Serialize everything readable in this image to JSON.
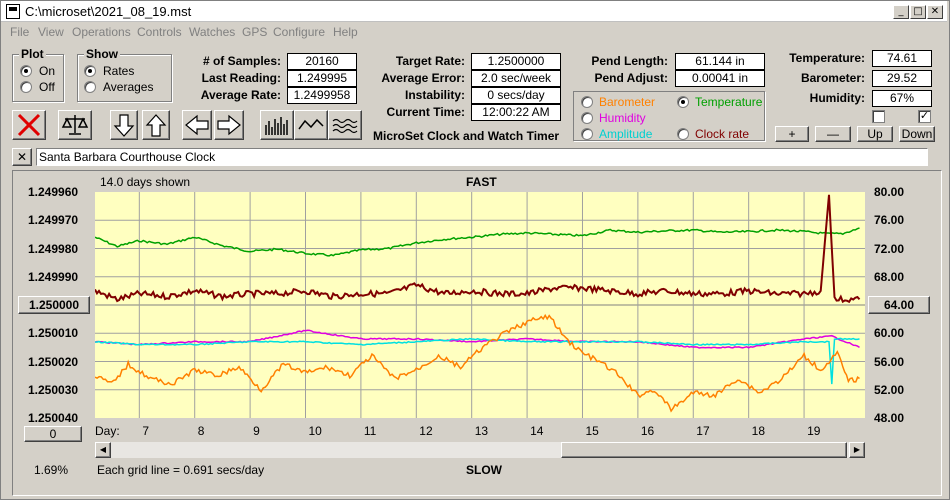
{
  "window": {
    "title": "C:\\microset\\2021_08_19.mst"
  },
  "menu": [
    "File",
    "View",
    "Operations",
    "Controls",
    "Watches",
    "GPS",
    "Configure",
    "Help"
  ],
  "plot_group": {
    "title": "Plot",
    "on": "On",
    "off": "Off",
    "selected": "On"
  },
  "show_group": {
    "title": "Show",
    "rates": "Rates",
    "averages": "Averages",
    "selected": "Rates"
  },
  "stats": {
    "samples_label": "# of Samples:",
    "samples": "20160",
    "last_label": "Last Reading:",
    "last": "1.249995",
    "avg_label": "Average Rate:",
    "avg": "1.2499958"
  },
  "rate": {
    "target_label": "Target Rate:",
    "target": "1.2500000",
    "error_label": "Average Error:",
    "error": "2.0 sec/week",
    "instab_label": "Instability:",
    "instab": "0 secs/day",
    "time_label": "Current Time:",
    "time": "12:00:22 AM",
    "app_name": "MicroSet Clock and Watch Timer"
  },
  "pend": {
    "length_label": "Pend Length:",
    "length": "61.144 in",
    "adjust_label": "Pend Adjust:",
    "adjust": "0.00041 in"
  },
  "sensor_options": {
    "barometer": "Barometer",
    "temperature": "Temperature",
    "humidity": "Humidity",
    "amplitude": "Amplitude",
    "clock_rate": "Clock rate",
    "selected": "Temperature"
  },
  "env": {
    "temp_label": "Temperature:",
    "temp": "74.61",
    "baro_label": "Barometer:",
    "baro": "29.52",
    "hum_label": "Humidity:",
    "hum": "67%"
  },
  "adjust_buttons": {
    "plus": "+",
    "minus": "—",
    "up": "Up",
    "down": "Down"
  },
  "watch_name": "Santa Barbara Courthouse Clock",
  "close_x": "✕",
  "colors": {
    "barometer": "#ff8000",
    "temperature": "#00a000",
    "humidity": "#e000e0",
    "amplitude": "#00e0e0",
    "clock_rate": "#800000",
    "plot_bg": "#ffffc0"
  },
  "chart_data": {
    "type": "line",
    "title": "FAST",
    "bottom_label": "SLOW",
    "days_shown": "14.0 days shown",
    "grid_note": "Each grid line = 0.691 secs/day",
    "xlabel": "Day:",
    "x_ticks": [
      "7",
      "8",
      "9",
      "10",
      "11",
      "12",
      "13",
      "14",
      "15",
      "16",
      "17",
      "18",
      "19"
    ],
    "xlim": [
      6.2,
      20.1
    ],
    "y_left_ticks": [
      "1.249960",
      "1.249970",
      "1.249980",
      "1.249990",
      "1.250000",
      "1.250010",
      "1.250020",
      "1.250030",
      "1.250040"
    ],
    "y_left_range": [
      1.24996,
      1.25004
    ],
    "y_left_reference": "1.250000",
    "y_right_ticks": [
      "80.00",
      "76.00",
      "72.00",
      "68.00",
      "64.00",
      "60.00",
      "56.00",
      "52.00",
      "48.00"
    ],
    "y_right_range": [
      80,
      48
    ],
    "y_right_reference": "64.00",
    "x_reference": "0",
    "percent": "1.69%",
    "series": [
      {
        "name": "Temperature",
        "axis": "right",
        "color": "#00a000",
        "x": [
          6.2,
          6.6,
          7.0,
          7.5,
          8.0,
          8.5,
          9.0,
          9.5,
          10.0,
          10.5,
          11.0,
          11.5,
          12.0,
          12.5,
          13.0,
          13.5,
          14.0,
          14.5,
          15.0,
          15.5,
          16.0,
          16.5,
          17.0,
          17.5,
          18.0,
          18.5,
          19.0,
          19.4,
          19.7,
          20.0
        ],
        "y": [
          73.6,
          72.3,
          73.1,
          72.6,
          73.6,
          72.4,
          71.6,
          71.9,
          71.3,
          71.0,
          71.8,
          72.0,
          72.8,
          73.3,
          73.6,
          74.0,
          74.2,
          74.0,
          73.8,
          74.6,
          74.3,
          74.5,
          74.6,
          74.3,
          74.4,
          74.6,
          74.4,
          74.1,
          74.1,
          74.9
        ]
      },
      {
        "name": "Clock rate",
        "axis": "left",
        "color": "#800000",
        "x": [
          6.2,
          6.6,
          7.0,
          7.5,
          8.0,
          8.5,
          9.0,
          9.5,
          10.0,
          10.5,
          11.0,
          11.5,
          12.0,
          12.5,
          13.0,
          13.5,
          14.0,
          14.5,
          15.0,
          15.5,
          16.0,
          16.5,
          17.0,
          17.5,
          18.0,
          18.5,
          19.0,
          19.3,
          19.45,
          19.55,
          19.7,
          20.0
        ],
        "y": [
          1.249995,
          1.249998,
          1.249996,
          1.249997,
          1.249995,
          1.249997,
          1.249996,
          1.249996,
          1.249995,
          1.249997,
          1.249996,
          1.249996,
          1.249993,
          1.249996,
          1.249995,
          1.249996,
          1.249996,
          1.249994,
          1.249994,
          1.249995,
          1.249996,
          1.249995,
          1.249996,
          1.249996,
          1.249995,
          1.249996,
          1.249996,
          1.249995,
          1.249961,
          1.249998,
          1.249998,
          1.249998
        ]
      },
      {
        "name": "Humidity",
        "axis": "left",
        "color": "#e000e0",
        "x": [
          6.2,
          7.0,
          8.0,
          9.0,
          10.0,
          11.0,
          12.0,
          13.0,
          14.0,
          15.0,
          16.0,
          17.0,
          18.0,
          19.0,
          19.5,
          20.0
        ],
        "y": [
          1.250013,
          1.250014,
          1.250013,
          1.250013,
          1.250009,
          1.250012,
          1.250012,
          1.250013,
          1.250012,
          1.250013,
          1.250013,
          1.250015,
          1.250015,
          1.250012,
          1.250011,
          1.250015
        ]
      },
      {
        "name": "Amplitude",
        "axis": "left",
        "color": "#00e0e0",
        "x": [
          6.2,
          7.0,
          8.0,
          9.0,
          10.0,
          11.0,
          12.0,
          13.0,
          14.0,
          15.0,
          16.0,
          17.0,
          18.0,
          19.0,
          19.45,
          19.5,
          19.55,
          20.0
        ],
        "y": [
          1.250013,
          1.250014,
          1.250014,
          1.250013,
          1.250013,
          1.250014,
          1.250013,
          1.250012,
          1.250013,
          1.250013,
          1.250013,
          1.250014,
          1.250014,
          1.250013,
          1.250013,
          1.250028,
          1.250012,
          1.250012
        ]
      },
      {
        "name": "Barometer",
        "axis": "left",
        "color": "#ff8000",
        "x": [
          6.2,
          6.5,
          6.8,
          7.2,
          7.6,
          8.0,
          8.4,
          8.8,
          9.2,
          9.6,
          10.0,
          10.4,
          10.8,
          11.2,
          11.6,
          12.0,
          12.4,
          12.8,
          13.2,
          13.6,
          14.0,
          14.4,
          14.7,
          15.0,
          15.3,
          15.6,
          16.0,
          16.3,
          16.6,
          17.0,
          17.4,
          17.8,
          18.2,
          18.6,
          19.0,
          19.3,
          19.6,
          19.8,
          20.0
        ],
        "y": [
          1.250025,
          1.250028,
          1.250021,
          1.250026,
          1.250028,
          1.250023,
          1.250025,
          1.250022,
          1.25003,
          1.250021,
          1.250024,
          1.250022,
          1.250025,
          1.250018,
          1.250026,
          1.250023,
          1.250018,
          1.250022,
          1.250015,
          1.25001,
          1.250006,
          1.250004,
          1.250012,
          1.250017,
          1.25002,
          1.250024,
          1.250032,
          1.25003,
          1.250037,
          1.250031,
          1.250032,
          1.250026,
          1.250031,
          1.250026,
          1.250018,
          1.250023,
          1.250017,
          1.250027,
          1.250026
        ]
      }
    ]
  }
}
